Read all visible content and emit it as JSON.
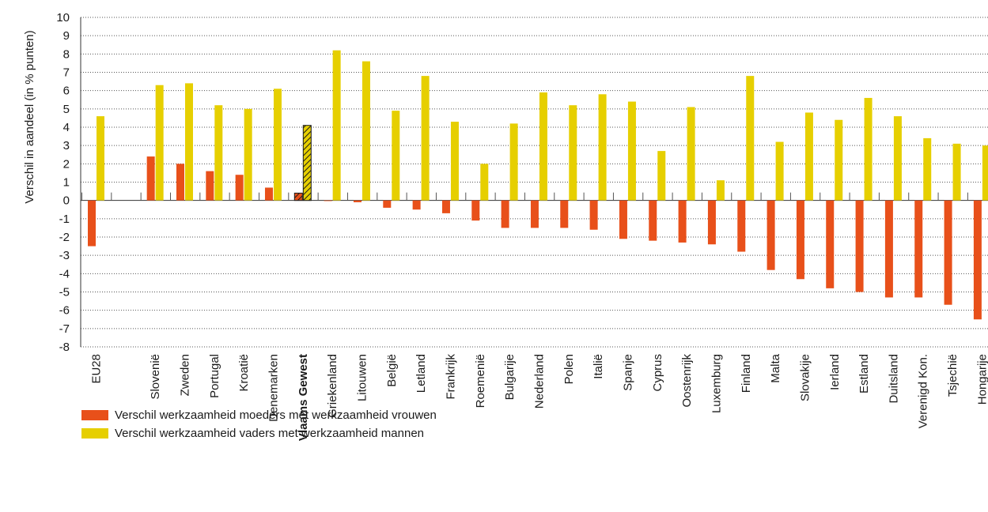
{
  "colors": {
    "mothers": "#E8501A",
    "fathers": "#E6CF00",
    "highlight_stroke": "#1a1a1a",
    "grid": "#555555"
  },
  "chart_data": {
    "type": "bar",
    "ylabel": "Verschil in aandeel (in %  punten)",
    "ylim": [
      -8,
      10
    ],
    "yticks": [
      10,
      9,
      8,
      7,
      6,
      5,
      4,
      3,
      2,
      1,
      0,
      -1,
      -2,
      -3,
      -4,
      -5,
      -6,
      -7,
      -8
    ],
    "grid": true,
    "legend_position": "bottom-left",
    "highlight_category": "Vlaams Gewest",
    "categories": [
      "EU28",
      "",
      "Slovenië",
      "Zweden",
      "Portugal",
      "Kroatië",
      "Denemarken",
      "Vlaams Gewest",
      "Griekenland",
      "Litouwen",
      "België",
      "Letland",
      "Frankrijk",
      "Roemenië",
      "Bulgarije",
      "Nederland",
      "Polen",
      "Italië",
      "Spanje",
      "Cyprus",
      "Oostenrijk",
      "Luxemburg",
      "Finland",
      "Malta",
      "Slovakije",
      "Ierland",
      "Estland",
      "Duitsland",
      "Verenigd Kon.",
      "Tsjechië",
      "Hongarije"
    ],
    "series": [
      {
        "name": "Verschil werkzaamheid moeders met werkzaamheid vrouwen",
        "values": [
          -2.5,
          null,
          2.4,
          2.0,
          1.6,
          1.4,
          0.7,
          0.4,
          0.0,
          -0.1,
          -0.4,
          -0.5,
          -0.7,
          -1.1,
          -1.5,
          -1.5,
          -1.5,
          -1.6,
          -2.1,
          -2.2,
          -2.3,
          -2.4,
          -2.8,
          -3.8,
          -4.3,
          -4.8,
          -5.0,
          -5.3,
          -5.3,
          -5.7,
          -6.5
        ]
      },
      {
        "name": "Verschil werkzaamheid vaders met werkzaamheid mannen",
        "values": [
          4.6,
          null,
          6.3,
          6.4,
          5.2,
          5.0,
          6.1,
          4.1,
          8.2,
          7.6,
          4.9,
          6.8,
          4.3,
          2.0,
          4.2,
          5.9,
          5.2,
          5.8,
          5.4,
          2.7,
          5.1,
          1.1,
          6.8,
          3.2,
          4.8,
          4.4,
          5.6,
          4.6,
          3.4,
          3.1,
          3.0
        ]
      }
    ]
  }
}
